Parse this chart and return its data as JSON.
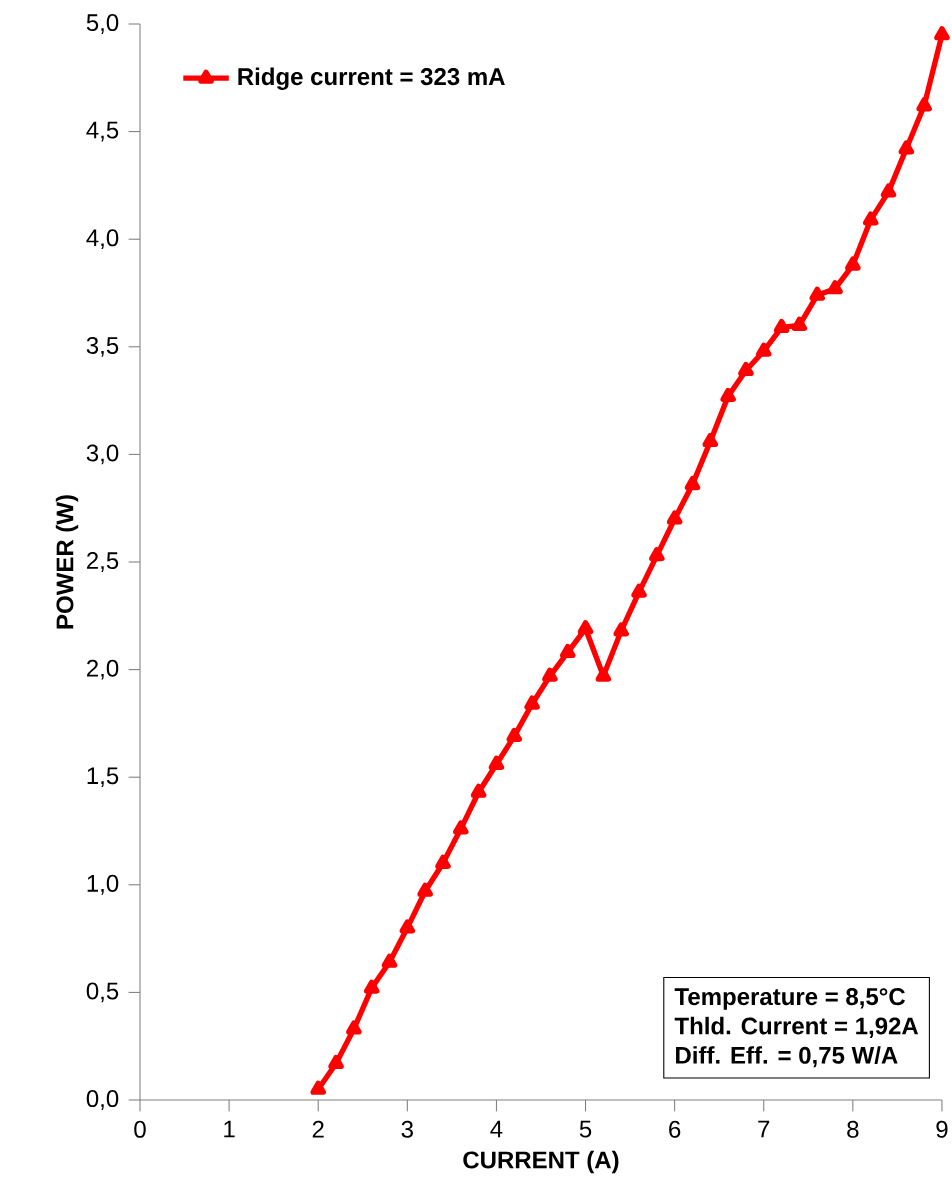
{
  "chart_data": {
    "type": "line",
    "xlabel": "CURRENT (A)",
    "ylabel": "POWER (W)",
    "x": [
      2.0,
      2.2,
      2.4,
      2.6,
      2.8,
      3.0,
      3.2,
      3.4,
      3.6,
      3.8,
      4.0,
      4.2,
      4.4,
      4.6,
      4.8,
      5.0,
      5.2,
      5.4,
      5.6,
      5.8,
      6.0,
      6.2,
      6.4,
      6.6,
      6.8,
      7.0,
      7.2,
      7.4,
      7.6,
      7.8,
      8.0,
      8.2,
      8.4,
      8.6,
      8.8,
      9.0
    ],
    "series": [
      {
        "name": "Ridge current = 323 mA",
        "color": "#ff0000",
        "values": [
          0.05,
          0.17,
          0.33,
          0.52,
          0.64,
          0.8,
          0.97,
          1.1,
          1.26,
          1.43,
          1.56,
          1.69,
          1.84,
          1.97,
          2.08,
          2.19,
          1.97,
          2.18,
          2.36,
          2.53,
          2.7,
          2.86,
          3.06,
          3.27,
          3.39,
          3.48,
          3.59,
          3.6,
          3.74,
          3.77,
          3.88,
          4.09,
          4.22,
          4.42,
          4.62,
          4.95
        ]
      }
    ],
    "xlim": [
      0,
      9
    ],
    "ylim": [
      0,
      5
    ],
    "xticks": [
      0,
      1,
      2,
      3,
      4,
      5,
      6,
      7,
      8,
      9
    ],
    "yticks": [
      {
        "value": 0,
        "label": "0,0"
      },
      {
        "value": 0.5,
        "label": "0,5"
      },
      {
        "value": 1,
        "label": "1,0"
      },
      {
        "value": 1.5,
        "label": "1,5"
      },
      {
        "value": 2,
        "label": "2,0"
      },
      {
        "value": 2.5,
        "label": "2,5"
      },
      {
        "value": 3,
        "label": "3,0"
      },
      {
        "value": 3.5,
        "label": "3,5"
      },
      {
        "value": 4,
        "label": "4,0"
      },
      {
        "value": 4.5,
        "label": "4,5"
      },
      {
        "value": 5,
        "label": "5,0"
      }
    ],
    "annotations": [
      "Temperature  =  8,5°C",
      "Thld. Current  =  1,92A",
      "Diff. Eff.   =  0,75 W/A"
    ],
    "legend": "top left",
    "marker": "triangle",
    "line_style": "solid",
    "grid": false
  }
}
